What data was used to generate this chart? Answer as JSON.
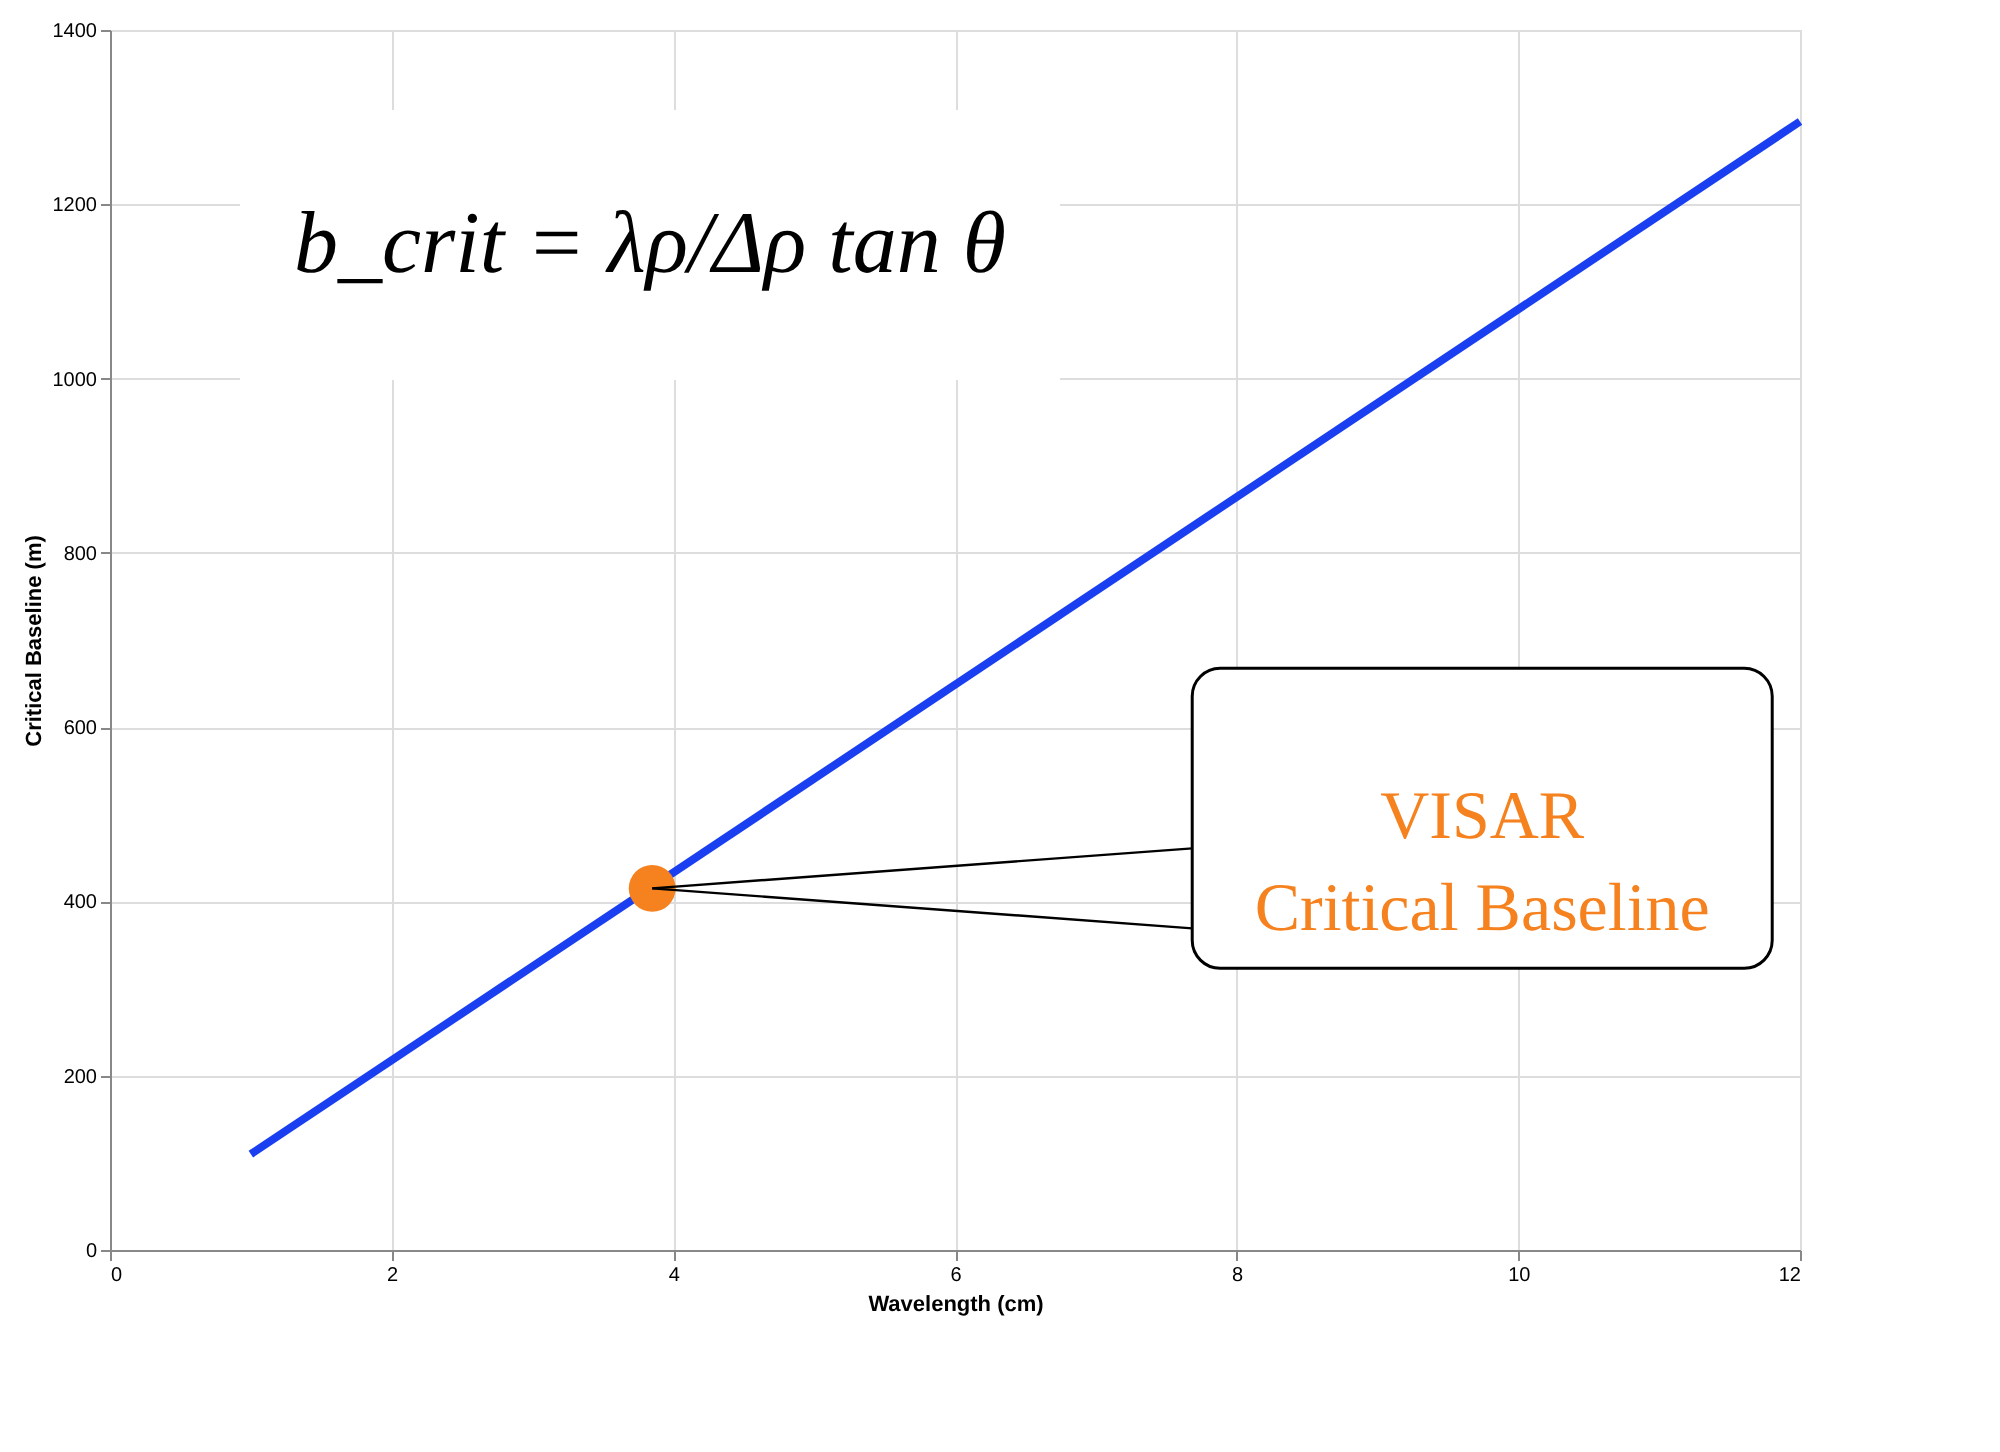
{
  "chart_data": {
    "type": "line",
    "xlabel": "Wavelength (cm)",
    "ylabel": "Critical Baseline (m)",
    "xlim": [
      0,
      12
    ],
    "xticks": [
      0,
      2,
      4,
      6,
      8,
      10,
      12
    ],
    "ylim": [
      0,
      1400
    ],
    "yticks": [
      0,
      200,
      400,
      600,
      800,
      1000,
      1200,
      1400
    ],
    "grid": true,
    "series": [
      {
        "color": "#1a3ff0",
        "x": [
          1,
          12
        ],
        "values": [
          110,
          1295
        ]
      },
      {
        "type": "scatter",
        "color": "#f5821f",
        "x": [
          3.85
        ],
        "values": [
          415
        ]
      }
    ],
    "annotations": [
      "b_crit = λρ/Δρ tan θ",
      {
        "text": "VISAR\nCritical Baseline",
        "x": 3.85,
        "y": 415
      }
    ]
  }
}
